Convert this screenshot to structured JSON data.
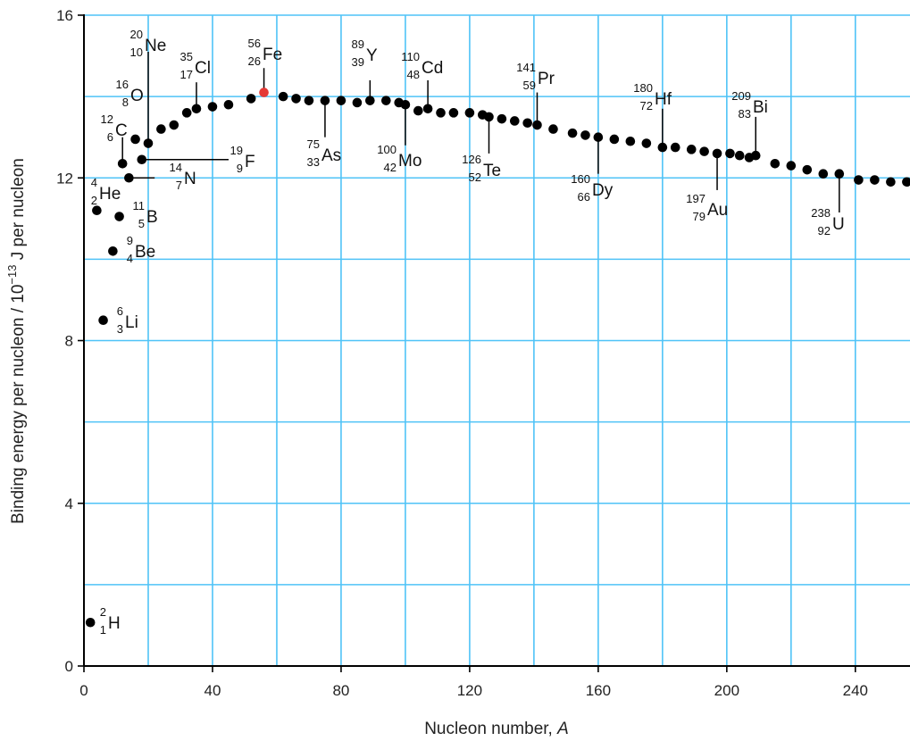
{
  "chart_data": {
    "type": "scatter",
    "xlabel": "Nucleon number, A",
    "xlabel_main": "Nucleon number, ",
    "xlabel_var": "A",
    "ylabel_pre": "Binding energy per nucleon / 10",
    "ylabel_sup": "−13",
    "ylabel_post": " J per nucleon",
    "xlim": [
      0,
      257
    ],
    "ylim": [
      0,
      16
    ],
    "x_ticks": [
      0,
      40,
      80,
      120,
      160,
      200,
      240
    ],
    "y_ticks": [
      0,
      4,
      8,
      12,
      16
    ],
    "grid_x": [
      20,
      40,
      60,
      80,
      100,
      120,
      140,
      160,
      180,
      200,
      220,
      240
    ],
    "grid_y": [
      2,
      4,
      6,
      8,
      10,
      12,
      14,
      16
    ],
    "colors": {
      "grid": "#4fc3f7",
      "point": "#000000",
      "highlight": "#e53935",
      "axis": "#000000"
    },
    "points": [
      [
        2,
        1.07
      ],
      [
        6,
        8.5
      ],
      [
        9,
        10.2
      ],
      [
        4,
        11.2
      ],
      [
        11,
        11.05
      ],
      [
        14,
        12.0
      ],
      [
        12,
        12.35
      ],
      [
        18,
        12.45
      ],
      [
        16,
        12.95
      ],
      [
        20,
        12.85
      ],
      [
        24,
        13.2
      ],
      [
        28,
        13.3
      ],
      [
        32,
        13.6
      ],
      [
        35,
        13.7
      ],
      [
        40,
        13.75
      ],
      [
        45,
        13.8
      ],
      [
        52,
        13.95
      ],
      [
        56,
        14.1
      ],
      [
        62,
        14.0
      ],
      [
        66,
        13.95
      ],
      [
        70,
        13.9
      ],
      [
        75,
        13.9
      ],
      [
        80,
        13.9
      ],
      [
        85,
        13.85
      ],
      [
        89,
        13.9
      ],
      [
        94,
        13.9
      ],
      [
        98,
        13.85
      ],
      [
        100,
        13.8
      ],
      [
        104,
        13.65
      ],
      [
        107,
        13.7
      ],
      [
        111,
        13.6
      ],
      [
        115,
        13.6
      ],
      [
        120,
        13.6
      ],
      [
        124,
        13.55
      ],
      [
        126,
        13.5
      ],
      [
        130,
        13.45
      ],
      [
        134,
        13.4
      ],
      [
        138,
        13.35
      ],
      [
        141,
        13.3
      ],
      [
        146,
        13.2
      ],
      [
        152,
        13.1
      ],
      [
        156,
        13.05
      ],
      [
        160,
        13.0
      ],
      [
        165,
        12.95
      ],
      [
        170,
        12.9
      ],
      [
        175,
        12.85
      ],
      [
        180,
        12.75
      ],
      [
        184,
        12.75
      ],
      [
        189,
        12.7
      ],
      [
        193,
        12.65
      ],
      [
        197,
        12.6
      ],
      [
        201,
        12.6
      ],
      [
        204,
        12.55
      ],
      [
        207,
        12.5
      ],
      [
        209,
        12.55
      ],
      [
        215,
        12.35
      ],
      [
        220,
        12.3
      ],
      [
        225,
        12.2
      ],
      [
        230,
        12.1
      ],
      [
        235,
        12.1
      ],
      [
        241,
        11.95
      ],
      [
        246,
        11.95
      ],
      [
        251,
        11.9
      ],
      [
        256,
        11.9
      ]
    ],
    "highlight_point": [
      56,
      14.1
    ],
    "labels": [
      {
        "sym": "H",
        "A": "2",
        "Z": "1"
      },
      {
        "sym": "Li",
        "A": "6",
        "Z": "3"
      },
      {
        "sym": "Be",
        "A": "9",
        "Z": "4"
      },
      {
        "sym": "He",
        "A": "4",
        "Z": "2"
      },
      {
        "sym": "B",
        "A": "11",
        "Z": "5"
      },
      {
        "sym": "N",
        "A": "14",
        "Z": "7"
      },
      {
        "sym": "F",
        "A": "19",
        "Z": "9"
      },
      {
        "sym": "C",
        "A": "12",
        "Z": "6"
      },
      {
        "sym": "O",
        "A": "16",
        "Z": "8"
      },
      {
        "sym": "Ne",
        "A": "20",
        "Z": "10"
      },
      {
        "sym": "Cl",
        "A": "35",
        "Z": "17"
      },
      {
        "sym": "Fe",
        "A": "56",
        "Z": "26"
      },
      {
        "sym": "As",
        "A": "75",
        "Z": "33"
      },
      {
        "sym": "Y",
        "A": "89",
        "Z": "39"
      },
      {
        "sym": "Mo",
        "A": "100",
        "Z": "42"
      },
      {
        "sym": "Cd",
        "A": "110",
        "Z": "48"
      },
      {
        "sym": "Te",
        "A": "126",
        "Z": "52"
      },
      {
        "sym": "Pr",
        "A": "141",
        "Z": "59"
      },
      {
        "sym": "Dy",
        "A": "160",
        "Z": "66"
      },
      {
        "sym": "Hf",
        "A": "180",
        "Z": "72"
      },
      {
        "sym": "Au",
        "A": "197",
        "Z": "79"
      },
      {
        "sym": "Bi",
        "A": "209",
        "Z": "83"
      },
      {
        "sym": "U",
        "A": "238",
        "Z": "92"
      }
    ]
  }
}
